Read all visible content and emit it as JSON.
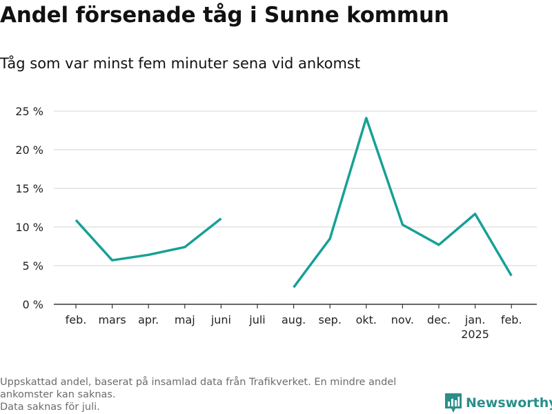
{
  "header": {
    "title": "Andel försenade tåg i Sunne kommun",
    "subtitle": "Tåg som var minst fem minuter sena vid ankomst"
  },
  "footnote": {
    "line1": "Uppskattad andel, baserat på insamlad data från Trafikverket. En mindre andel ankomster kan saknas.",
    "line2": "Data saknas för juli."
  },
  "brand": {
    "name": "Newsworthy",
    "color": "#2a8f8a"
  },
  "colors": {
    "line": "#16a096",
    "grid": "#dcdcdc",
    "axis": "#333333"
  },
  "chart_data": {
    "type": "line",
    "title": "Andel försenade tåg i Sunne kommun",
    "subtitle": "Tåg som var minst fem minuter sena vid ankomst",
    "xlabel": "",
    "ylabel": "",
    "categories": [
      "feb.",
      "mars",
      "apr.",
      "maj",
      "juni",
      "juli",
      "aug.",
      "sep.",
      "okt.",
      "nov.",
      "dec.",
      "jan.",
      "feb."
    ],
    "category_sublabels": [
      "",
      "",
      "",
      "",
      "",
      "",
      "",
      "",
      "",
      "",
      "",
      "2025",
      ""
    ],
    "series": [
      {
        "name": "Andel försenade tåg",
        "values": [
          10.9,
          5.7,
          6.4,
          7.4,
          11.1,
          null,
          2.2,
          8.5,
          24.1,
          10.3,
          7.7,
          11.7,
          3.7
        ]
      }
    ],
    "ylim": [
      0,
      25
    ],
    "yticks": [
      0,
      5,
      10,
      15,
      20,
      25
    ],
    "ytick_labels": [
      "0 %",
      "5 %",
      "10 %",
      "15 %",
      "20 %",
      "25 %"
    ],
    "grid": true,
    "legend": "none"
  }
}
